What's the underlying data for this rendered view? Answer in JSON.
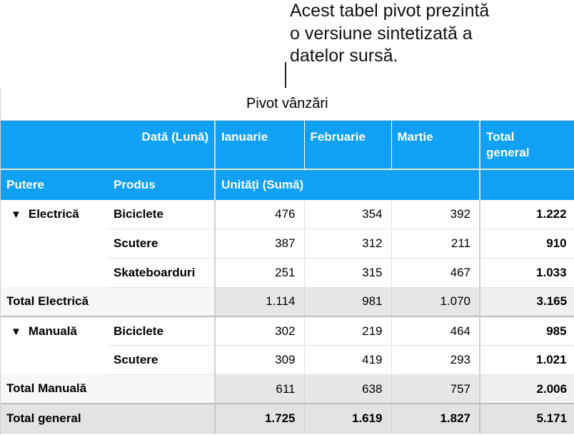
{
  "callout": {
    "line1": "Acest tabel pivot prezintă",
    "line2": "o versiune sintetizată a",
    "line3": "datelor sursă."
  },
  "table": {
    "title": "Pivot vânzări",
    "column_field_label": "Dată (Lună)",
    "columns": [
      "Ianuarie",
      "Februarie",
      "Martie"
    ],
    "grand_total_col_line1": "Total",
    "grand_total_col_line2": "general",
    "row_field_1": "Putere",
    "row_field_2": "Produs",
    "value_field": "Unități (Sumă)",
    "groups": [
      {
        "name": "Electrică",
        "toggle": "▼",
        "rows": [
          {
            "product": "Biciclete",
            "values": [
              "476",
              "354",
              "392"
            ],
            "total": "1.222"
          },
          {
            "product": "Scutere",
            "values": [
              "387",
              "312",
              "211"
            ],
            "total": "910"
          },
          {
            "product": "Skateboarduri",
            "values": [
              "251",
              "315",
              "467"
            ],
            "total": "1.033"
          }
        ],
        "subtotal_label": "Total Electrică",
        "subtotal_values": [
          "1.114",
          "981",
          "1.070"
        ],
        "subtotal_total": "3.165"
      },
      {
        "name": "Manuală",
        "toggle": "▼",
        "rows": [
          {
            "product": "Biciclete",
            "values": [
              "302",
              "219",
              "464"
            ],
            "total": "985"
          },
          {
            "product": "Scutere",
            "values": [
              "309",
              "419",
              "293"
            ],
            "total": "1.021"
          }
        ],
        "subtotal_label": "Total Manuală",
        "subtotal_values": [
          "611",
          "638",
          "757"
        ],
        "subtotal_total": "2.006"
      }
    ],
    "grand_total_label": "Total general",
    "grand_total_values": [
      "1.725",
      "1.619",
      "1.827"
    ],
    "grand_total_total": "5.171"
  },
  "colors": {
    "header_blue": "#10a0f4",
    "subtotal_gray": "#e6e6e6",
    "grand_gray": "#e3e3e3"
  }
}
